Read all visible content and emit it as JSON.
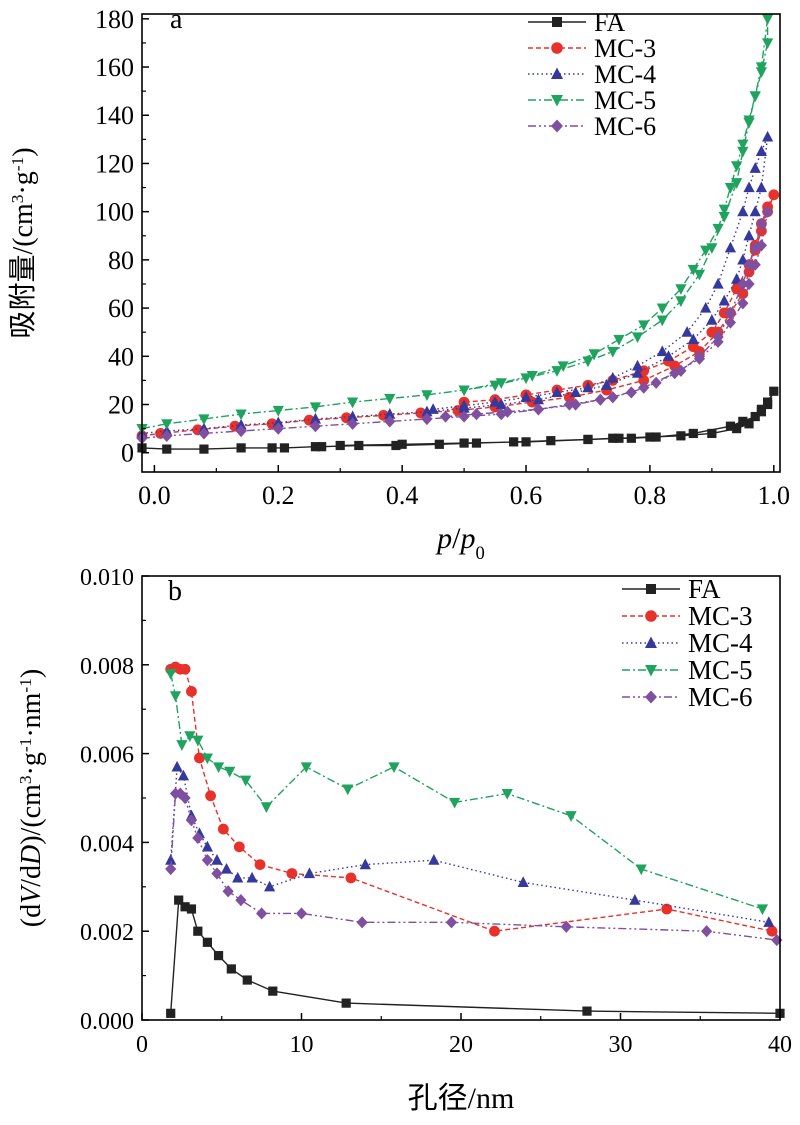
{
  "chart_data": [
    {
      "panel": "a",
      "type": "line",
      "xlabel_parts": [
        {
          "t": "p",
          "italic": true
        },
        {
          "t": "/",
          "italic": false
        },
        {
          "t": "p",
          "italic": true
        },
        {
          "t": "0",
          "sub": true,
          "italic": false
        }
      ],
      "ylabel_parts": [
        {
          "t": "吸附量/(cm"
        },
        {
          "t": "3",
          "sup": true
        },
        {
          "t": "·g"
        },
        {
          "t": "-1",
          "sup": true
        },
        {
          "t": ")"
        }
      ],
      "xlim": [
        -0.02,
        1.01
      ],
      "ylim": [
        -8,
        182
      ],
      "xticks": [
        0.0,
        0.2,
        0.4,
        0.6,
        0.8,
        1.0
      ],
      "xtick_labels": [
        "0.0",
        "0.2",
        "0.4",
        "0.6",
        "0.8",
        "1.0"
      ],
      "yticks": [
        0,
        20,
        40,
        60,
        80,
        100,
        120,
        140,
        160,
        180
      ],
      "ytick_labels": [
        "0",
        "20",
        "40",
        "60",
        "80",
        "100",
        "120",
        "140",
        "160",
        "180"
      ],
      "legend": "top-right",
      "series": [
        {
          "name": "FA",
          "color": "#222222",
          "marker": "square",
          "dash": "",
          "x": [
            -0.02,
            0.02,
            0.08,
            0.14,
            0.19,
            0.21,
            0.26,
            0.27,
            0.33,
            0.39,
            0.46,
            0.52,
            0.58,
            0.64,
            0.7,
            0.74,
            0.77,
            0.81,
            0.87,
            0.93,
            0.95,
            0.97,
            0.98,
            0.99,
            1.0,
            0.99,
            0.98,
            0.96,
            0.94,
            0.9,
            0.85,
            0.8,
            0.75,
            0.7,
            0.6,
            0.5,
            0.4,
            0.3
          ],
          "y": [
            2,
            1.5,
            1.5,
            2,
            2,
            2,
            2.5,
            2.5,
            3,
            3,
            3.5,
            4,
            4.5,
            5,
            5.5,
            6,
            6,
            6.5,
            8,
            11,
            13,
            15,
            18,
            21,
            25.5,
            20,
            17,
            12,
            10,
            8,
            7,
            6.5,
            6,
            5.5,
            4.5,
            4,
            3.5,
            3
          ]
        },
        {
          "name": "MC-3",
          "color": "#e8312a",
          "marker": "circle",
          "dash": "5,3",
          "x": [
            -0.02,
            0.01,
            0.07,
            0.13,
            0.19,
            0.25,
            0.31,
            0.37,
            0.43,
            0.49,
            0.55,
            0.61,
            0.67,
            0.73,
            0.79,
            0.84,
            0.88,
            0.91,
            0.93,
            0.95,
            0.96,
            0.97,
            0.98,
            0.99,
            1.0,
            0.99,
            0.98,
            0.97,
            0.96,
            0.94,
            0.92,
            0.9,
            0.87,
            0.83,
            0.79,
            0.74,
            0.7,
            0.65,
            0.6,
            0.55,
            0.5
          ],
          "y": [
            7,
            8,
            9.5,
            11,
            12,
            13.5,
            14.5,
            15.5,
            16.5,
            17.5,
            19,
            21,
            23,
            26,
            30,
            36,
            42,
            50,
            58,
            66,
            75,
            84,
            92,
            100,
            107,
            102,
            95,
            86,
            78,
            68,
            58,
            50,
            44,
            38,
            34,
            30,
            28,
            26,
            24,
            22,
            21
          ]
        },
        {
          "name": "MC-4",
          "color": "#35389c",
          "marker": "triangle-up",
          "dash": "1.5,3",
          "x": [
            -0.02,
            0.02,
            0.08,
            0.14,
            0.2,
            0.26,
            0.32,
            0.38,
            0.44,
            0.5,
            0.56,
            0.62,
            0.68,
            0.73,
            0.78,
            0.83,
            0.87,
            0.9,
            0.92,
            0.94,
            0.95,
            0.96,
            0.97,
            0.98,
            0.99,
            0.98,
            0.97,
            0.96,
            0.95,
            0.93,
            0.91,
            0.89,
            0.86,
            0.82,
            0.78,
            0.74,
            0.7,
            0.65,
            0.6,
            0.55,
            0.5,
            0.45
          ],
          "y": [
            8,
            9,
            10,
            11.5,
            12.5,
            14,
            15,
            16,
            17,
            18.5,
            20,
            22,
            25,
            28,
            33,
            40,
            47,
            55,
            63,
            72,
            80,
            90,
            100,
            110,
            131,
            125,
            118,
            110,
            100,
            85,
            70,
            60,
            50,
            42,
            36,
            31,
            27,
            25,
            23,
            21,
            19.5,
            18
          ]
        },
        {
          "name": "MC-5",
          "color": "#1fa35f",
          "marker": "triangle-down",
          "dash": "8,3,2,3",
          "x": [
            -0.02,
            0.02,
            0.08,
            0.14,
            0.2,
            0.26,
            0.32,
            0.38,
            0.44,
            0.5,
            0.56,
            0.61,
            0.66,
            0.71,
            0.75,
            0.79,
            0.82,
            0.85,
            0.87,
            0.89,
            0.91,
            0.92,
            0.93,
            0.94,
            0.95,
            0.96,
            0.97,
            0.98,
            0.99,
            0.99,
            0.98,
            0.97,
            0.96,
            0.95,
            0.94,
            0.92,
            0.9,
            0.88,
            0.85,
            0.82,
            0.78,
            0.74,
            0.7,
            0.65,
            0.6,
            0.55,
            0.5
          ],
          "y": [
            10,
            12,
            14,
            16,
            17.5,
            19,
            21,
            22.5,
            24,
            26,
            29,
            32,
            36,
            41,
            47,
            53,
            60,
            68,
            76,
            84,
            93,
            101,
            110,
            119,
            128,
            138,
            148,
            160,
            180,
            170,
            158,
            148,
            137,
            125,
            112,
            98,
            85,
            74,
            63,
            55,
            48,
            42,
            38,
            34,
            31,
            28,
            26
          ]
        },
        {
          "name": "MC-6",
          "color": "#7f4fa0",
          "marker": "diamond",
          "dash": "8,3,2,3,2,3",
          "x": [
            -0.02,
            0.02,
            0.08,
            0.14,
            0.2,
            0.26,
            0.32,
            0.38,
            0.44,
            0.5,
            0.56,
            0.62,
            0.68,
            0.74,
            0.79,
            0.84,
            0.88,
            0.91,
            0.93,
            0.95,
            0.96,
            0.97,
            0.98,
            0.99,
            0.98,
            0.97,
            0.96,
            0.95,
            0.93,
            0.91,
            0.88,
            0.85,
            0.81,
            0.77,
            0.72,
            0.67,
            0.62,
            0.57,
            0.52,
            0.47
          ],
          "y": [
            6,
            7,
            8,
            9,
            10,
            11,
            12,
            13,
            14,
            15,
            16,
            18,
            20,
            23,
            27,
            33,
            39,
            46,
            54,
            62,
            70,
            78,
            86,
            100,
            95,
            85,
            78,
            70,
            58,
            48,
            40,
            34,
            29,
            25,
            22,
            20,
            18,
            17,
            16,
            15
          ]
        }
      ],
      "panel_label": "a"
    },
    {
      "panel": "b",
      "type": "line",
      "xlabel_parts": [
        {
          "t": "孔径/nm"
        }
      ],
      "ylabel_parts": [
        {
          "t": "(d"
        },
        {
          "t": "V",
          "italic": true
        },
        {
          "t": "/d"
        },
        {
          "t": "D",
          "italic": true
        },
        {
          "t": ")/(cm"
        },
        {
          "t": "3",
          "sup": true
        },
        {
          "t": "·g"
        },
        {
          "t": "-1",
          "sup": true
        },
        {
          "t": "·nm"
        },
        {
          "t": "-1",
          "sup": true
        },
        {
          "t": ")"
        }
      ],
      "xlim": [
        0,
        40
      ],
      "ylim": [
        0,
        0.01
      ],
      "xticks": [
        0,
        10,
        20,
        30,
        40
      ],
      "xtick_labels": [
        "0",
        "10",
        "20",
        "30",
        "40"
      ],
      "yticks": [
        0,
        0.002,
        0.004,
        0.006,
        0.008,
        0.01
      ],
      "ytick_labels": [
        "0.000",
        "0.002",
        "0.004",
        "0.006",
        "0.008",
        "0.010"
      ],
      "legend": "top-right",
      "series": [
        {
          "name": "FA",
          "color": "#222222",
          "marker": "square",
          "dash": "",
          "x": [
            1.8,
            2.3,
            2.7,
            3.1,
            3.5,
            4.1,
            4.8,
            5.6,
            6.6,
            8.2,
            12.8,
            27.9,
            40
          ],
          "y": [
            0.00015,
            0.0027,
            0.00255,
            0.0025,
            0.002,
            0.00175,
            0.00145,
            0.00115,
            0.0009,
            0.00065,
            0.00038,
            0.0002,
            0.00015
          ]
        },
        {
          "name": "MC-3",
          "color": "#e8312a",
          "marker": "circle",
          "dash": "5,3",
          "x": [
            1.8,
            2.1,
            2.4,
            2.7,
            3.1,
            3.6,
            4.3,
            5.1,
            6.1,
            7.4,
            9.4,
            13.1,
            22.1,
            32.9,
            39.5
          ],
          "y": [
            0.0079,
            0.00795,
            0.0079,
            0.0079,
            0.0074,
            0.0059,
            0.00505,
            0.0043,
            0.0039,
            0.0035,
            0.0033,
            0.0032,
            0.002,
            0.0025,
            0.002
          ]
        },
        {
          "name": "MC-4",
          "color": "#35389c",
          "marker": "triangle-up",
          "dash": "1.5,3",
          "x": [
            1.8,
            2.2,
            2.6,
            3.1,
            3.6,
            4.1,
            4.7,
            5.3,
            6.0,
            6.9,
            8.0,
            10.5,
            14.0,
            18.3,
            23.9,
            30.9,
            39.3
          ],
          "y": [
            0.0036,
            0.0057,
            0.0055,
            0.0046,
            0.0042,
            0.0039,
            0.0036,
            0.0034,
            0.0032,
            0.0032,
            0.003,
            0.0033,
            0.0035,
            0.0036,
            0.0031,
            0.0027,
            0.0022
          ]
        },
        {
          "name": "MC-5",
          "color": "#1fa35f",
          "marker": "triangle-down",
          "dash": "8,3,2,3",
          "x": [
            1.8,
            2.1,
            2.5,
            3.0,
            3.5,
            4.1,
            4.8,
            5.5,
            6.5,
            7.8,
            10.3,
            12.9,
            15.8,
            19.6,
            22.9,
            26.9,
            31.3,
            38.9
          ],
          "y": [
            0.0078,
            0.0073,
            0.0062,
            0.0064,
            0.0063,
            0.0059,
            0.0057,
            0.0056,
            0.0054,
            0.0048,
            0.0057,
            0.0052,
            0.0057,
            0.0049,
            0.0051,
            0.0046,
            0.0034,
            0.0025
          ]
        },
        {
          "name": "MC-6",
          "color": "#7f4fa0",
          "marker": "diamond",
          "dash": "8,3,2,3,2,3",
          "x": [
            1.8,
            2.1,
            2.4,
            2.7,
            3.1,
            3.5,
            4.1,
            4.7,
            5.4,
            6.2,
            7.5,
            10.0,
            13.8,
            19.4,
            26.6,
            35.4,
            39.8
          ],
          "y": [
            0.0034,
            0.0051,
            0.0051,
            0.005,
            0.0045,
            0.0041,
            0.0036,
            0.0033,
            0.0029,
            0.0027,
            0.0024,
            0.0024,
            0.0022,
            0.0022,
            0.0021,
            0.002,
            0.0018
          ]
        }
      ],
      "panel_label": "b"
    }
  ]
}
